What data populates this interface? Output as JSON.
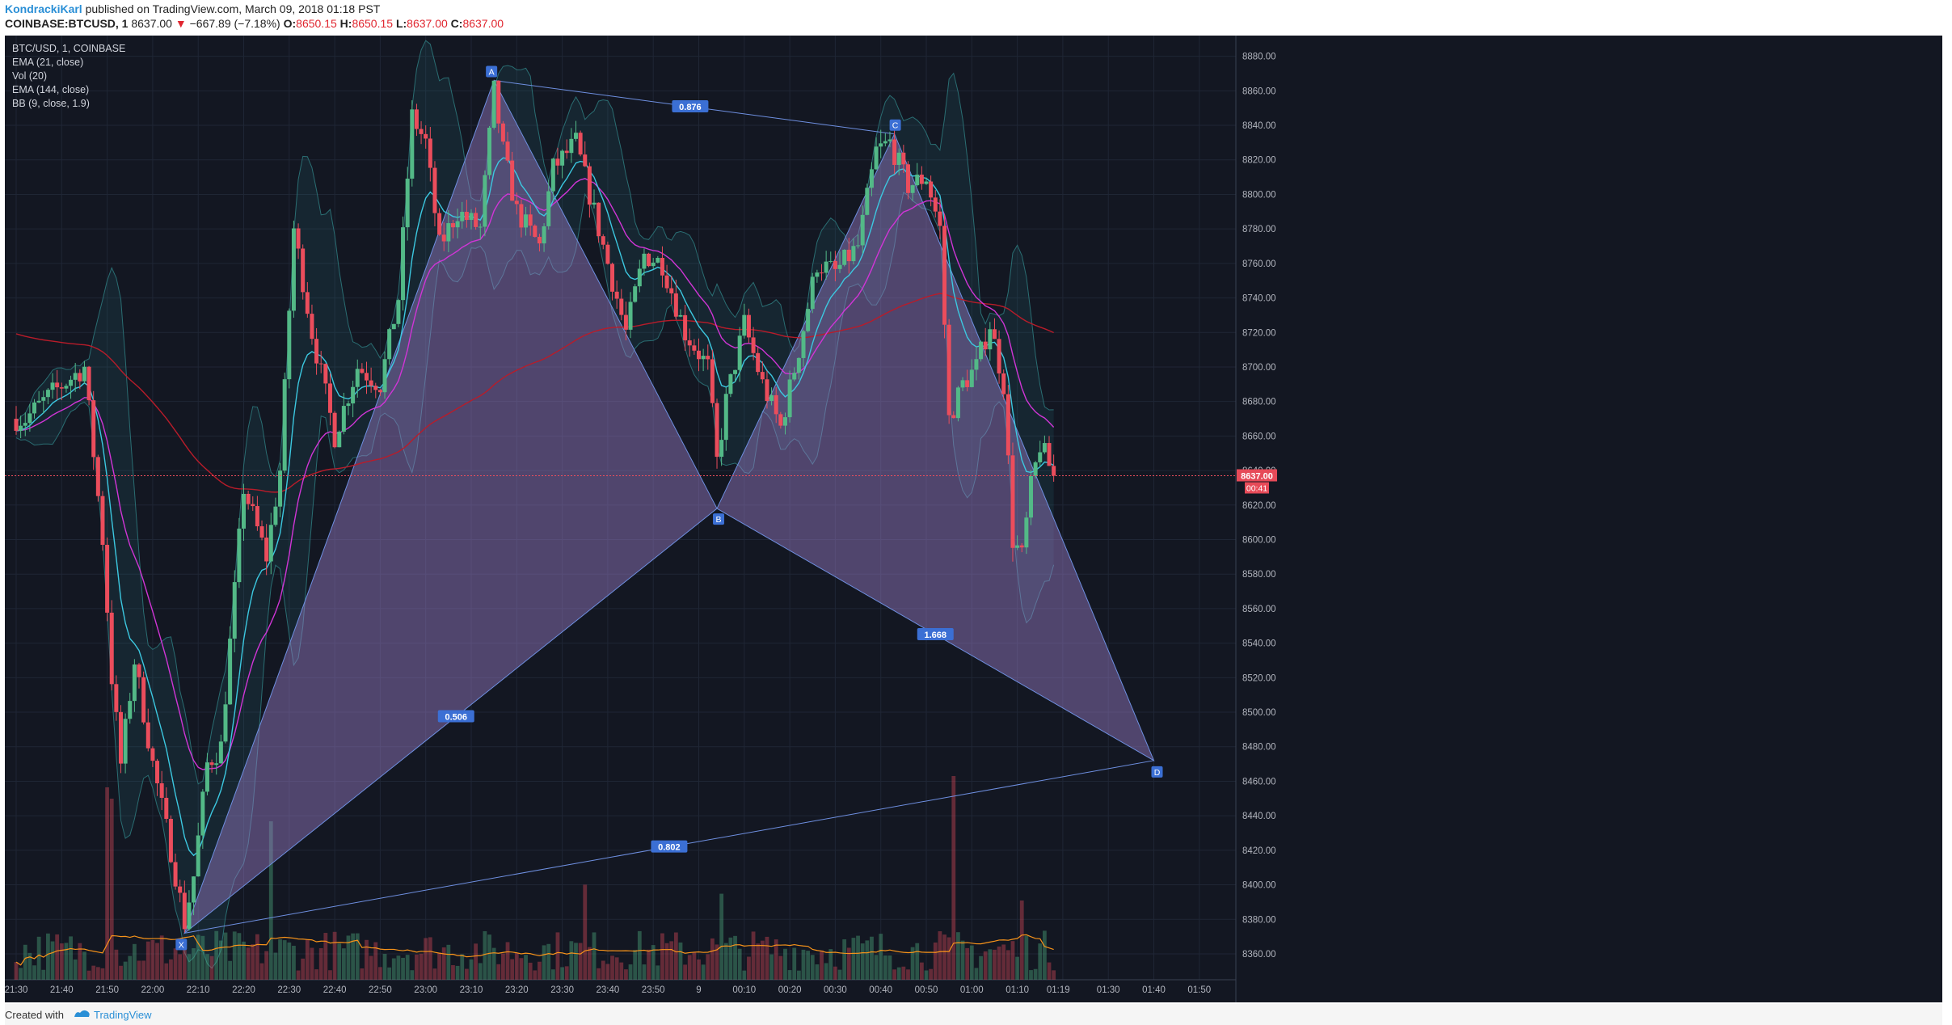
{
  "header": {
    "author": "KondrackiKarl",
    "published_text": "published on TradingView.com, March 09, 2018 01:18 PST",
    "symbol": "COINBASE:BTCUSD, 1",
    "price": "8637.00",
    "change": "−667.89 (−7.18%)",
    "o_label": "O:",
    "o": "8650.15",
    "h_label": "H:",
    "h": "8650.15",
    "l_label": "L:",
    "l": "8637.00",
    "c_label": "C:",
    "c": "8637.00"
  },
  "legend": {
    "line1": "BTC/USD, 1, COINBASE",
    "line2": "EMA (21, close)",
    "line3": "Vol (20)",
    "line4": "EMA (144, close)",
    "line5": "BB (9, close, 1.9)"
  },
  "footer": {
    "created": "Created with",
    "brand": "TradingView"
  },
  "chart_data": {
    "type": "candlestick",
    "symbol": "BTC/USD",
    "ylim": [
      8345,
      8892
    ],
    "x_ticks": [
      "21:30",
      "21:40",
      "21:50",
      "22:00",
      "22:10",
      "22:20",
      "22:30",
      "22:40",
      "22:50",
      "23:00",
      "23:10",
      "23:20",
      "23:30",
      "23:40",
      "23:50",
      "9",
      "00:10",
      "00:20",
      "00:30",
      "00:40",
      "00:50",
      "01:00",
      "01:10",
      "01:19",
      "01:30",
      "01:40",
      "01:50"
    ],
    "y_ticks": [
      "8880.00",
      "8860.00",
      "8840.00",
      "8820.00",
      "8800.00",
      "8780.00",
      "8760.00",
      "8740.00",
      "8720.00",
      "8700.00",
      "8680.00",
      "8660.00",
      "8640.00",
      "8620.00",
      "8600.00",
      "8580.00",
      "8560.00",
      "8540.00",
      "8520.00",
      "8500.00",
      "8480.00",
      "8460.00",
      "8440.00",
      "8420.00",
      "8400.00",
      "8380.00",
      "8360.00"
    ],
    "price_label": "8637.00",
    "countdown_label": "00:41",
    "last_price": 8637,
    "colors": {
      "up": "#53b987",
      "down": "#eb4d5c",
      "pattern_fill": "#9b7fc9",
      "pattern_line": "#6e8fe0",
      "ema21": "#3cc8e0",
      "ema144": "#b81c2a",
      "ema_alt": "#d035d6",
      "vol_ma": "#f7931a"
    },
    "harmonic_pattern": {
      "points": [
        {
          "label": "X",
          "time": "22:07",
          "price": 8372
        },
        {
          "label": "A",
          "time": "23:15",
          "price": 8866
        },
        {
          "label": "B",
          "time": "00:04",
          "price": 8618
        },
        {
          "label": "C",
          "time": "00:43",
          "price": 8835
        },
        {
          "label": "D",
          "time": "01:40",
          "price": 8472
        }
      ],
      "ratios": [
        {
          "text": "0.876"
        },
        {
          "text": "0.506"
        },
        {
          "text": "1.668"
        },
        {
          "text": "0.802"
        }
      ]
    },
    "anchors": [
      {
        "time": "21:32",
        "price": 8670
      },
      {
        "time": "21:38",
        "price": 8685
      },
      {
        "time": "21:45",
        "price": 8700
      },
      {
        "time": "21:49",
        "price": 8600
      },
      {
        "time": "21:51",
        "price": 8520
      },
      {
        "time": "21:53",
        "price": 8470
      },
      {
        "time": "21:56",
        "price": 8530
      },
      {
        "time": "22:00",
        "price": 8470
      },
      {
        "time": "22:04",
        "price": 8420
      },
      {
        "time": "22:07",
        "price": 8378
      },
      {
        "time": "22:09",
        "price": 8405
      },
      {
        "time": "22:12",
        "price": 8470
      },
      {
        "time": "22:15",
        "price": 8480
      },
      {
        "time": "22:20",
        "price": 8630
      },
      {
        "time": "22:25",
        "price": 8590
      },
      {
        "time": "22:28",
        "price": 8640
      },
      {
        "time": "22:31",
        "price": 8780
      },
      {
        "time": "22:35",
        "price": 8720
      },
      {
        "time": "22:40",
        "price": 8660
      },
      {
        "time": "22:45",
        "price": 8700
      },
      {
        "time": "22:50",
        "price": 8690
      },
      {
        "time": "22:54",
        "price": 8740
      },
      {
        "time": "22:57",
        "price": 8845
      },
      {
        "time": "23:00",
        "price": 8830
      },
      {
        "time": "23:03",
        "price": 8770
      },
      {
        "time": "23:07",
        "price": 8790
      },
      {
        "time": "23:12",
        "price": 8780
      },
      {
        "time": "23:15",
        "price": 8860
      },
      {
        "time": "23:17",
        "price": 8825
      },
      {
        "time": "23:20",
        "price": 8790
      },
      {
        "time": "23:25",
        "price": 8770
      },
      {
        "time": "23:28",
        "price": 8815
      },
      {
        "time": "23:33",
        "price": 8830
      },
      {
        "time": "23:37",
        "price": 8790
      },
      {
        "time": "23:40",
        "price": 8760
      },
      {
        "time": "23:44",
        "price": 8720
      },
      {
        "time": "23:48",
        "price": 8765
      },
      {
        "time": "23:52",
        "price": 8760
      },
      {
        "time": "23:57",
        "price": 8720
      },
      {
        "time": "00:02",
        "price": 8700
      },
      {
        "time": "00:04",
        "price": 8645
      },
      {
        "time": "00:06",
        "price": 8680
      },
      {
        "time": "00:10",
        "price": 8725
      },
      {
        "time": "00:14",
        "price": 8690
      },
      {
        "time": "00:18",
        "price": 8665
      },
      {
        "time": "00:22",
        "price": 8710
      },
      {
        "time": "00:26",
        "price": 8760
      },
      {
        "time": "00:30",
        "price": 8755
      },
      {
        "time": "00:35",
        "price": 8770
      },
      {
        "time": "00:39",
        "price": 8825
      },
      {
        "time": "00:42",
        "price": 8830
      },
      {
        "time": "00:46",
        "price": 8805
      },
      {
        "time": "00:50",
        "price": 8810
      },
      {
        "time": "00:53",
        "price": 8780
      },
      {
        "time": "00:55",
        "price": 8670
      },
      {
        "time": "00:58",
        "price": 8690
      },
      {
        "time": "01:01",
        "price": 8700
      },
      {
        "time": "01:04",
        "price": 8725
      },
      {
        "time": "01:07",
        "price": 8690
      },
      {
        "time": "01:09",
        "price": 8600
      },
      {
        "time": "01:11",
        "price": 8590
      },
      {
        "time": "01:13",
        "price": 8630
      },
      {
        "time": "01:15",
        "price": 8655
      },
      {
        "time": "01:18",
        "price": 8637
      }
    ],
    "volume_spikes": [
      {
        "time": "21:50",
        "relative": 0.85
      },
      {
        "time": "21:51",
        "relative": 0.8
      },
      {
        "time": "22:26",
        "relative": 0.7
      },
      {
        "time": "23:35",
        "relative": 0.42
      },
      {
        "time": "00:05",
        "relative": 0.38
      },
      {
        "time": "00:56",
        "relative": 0.9
      },
      {
        "time": "01:11",
        "relative": 0.35
      }
    ]
  }
}
